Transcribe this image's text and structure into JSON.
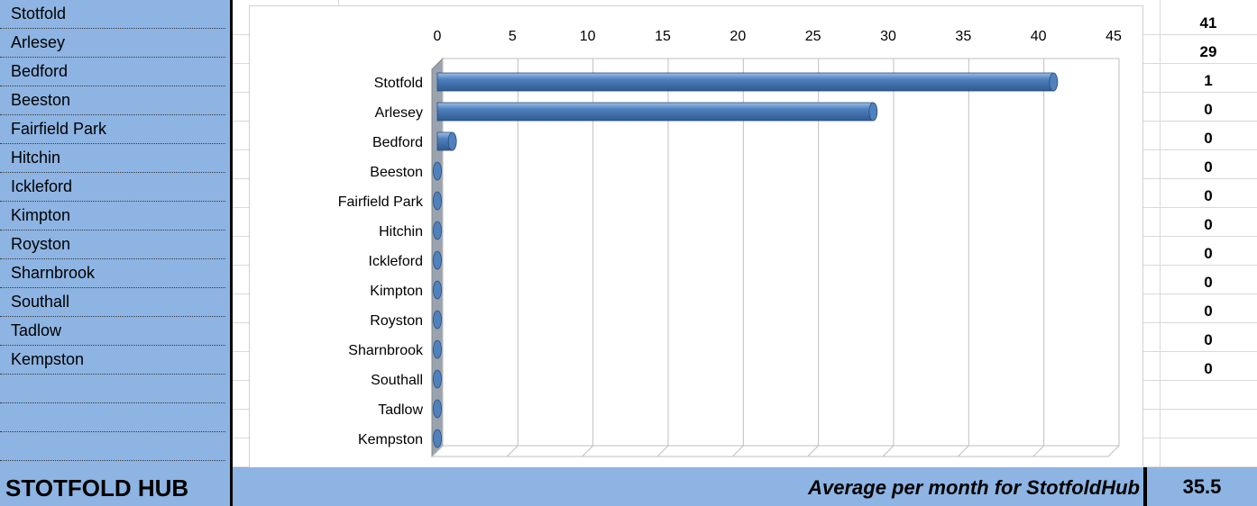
{
  "left_column": {
    "names": [
      "Stotfold",
      "Arlesey",
      "Bedford",
      "Beeston",
      "Fairfield Park",
      "Hitchin",
      "Ickleford",
      "Kimpton",
      "Royston",
      "Sharnbrook",
      "Southall",
      "Tadlow",
      "Kempston"
    ]
  },
  "right_column": {
    "values": [
      "41",
      "29",
      "1",
      "0",
      "0",
      "0",
      "0",
      "0",
      "0",
      "0",
      "0",
      "0",
      "0"
    ]
  },
  "footer": {
    "hub_title": "STOTFOLD HUB",
    "average_label": "Average per month for StotfoldHub",
    "average_value": "35.5"
  },
  "colors": {
    "accent_blue": "#8db4e2",
    "bar_fill": "#4f81bd",
    "bar_dark": "#2e5a92"
  },
  "chart_data": {
    "type": "bar",
    "orientation": "horizontal",
    "categories": [
      "Stotfold",
      "Arlesey",
      "Bedford",
      "Beeston",
      "Fairfield Park",
      "Hitchin",
      "Ickleford",
      "Kimpton",
      "Royston",
      "Sharnbrook",
      "Southall",
      "Tadlow",
      "Kempston"
    ],
    "values": [
      41,
      29,
      1,
      0,
      0,
      0,
      0,
      0,
      0,
      0,
      0,
      0,
      0
    ],
    "xticks": [
      0,
      5,
      10,
      15,
      20,
      25,
      30,
      35,
      40,
      45
    ],
    "xlim": [
      0,
      45
    ],
    "title": "",
    "xlabel": "",
    "ylabel": "",
    "grid": true,
    "x_axis_position": "top",
    "style": "3d-cylinder"
  }
}
